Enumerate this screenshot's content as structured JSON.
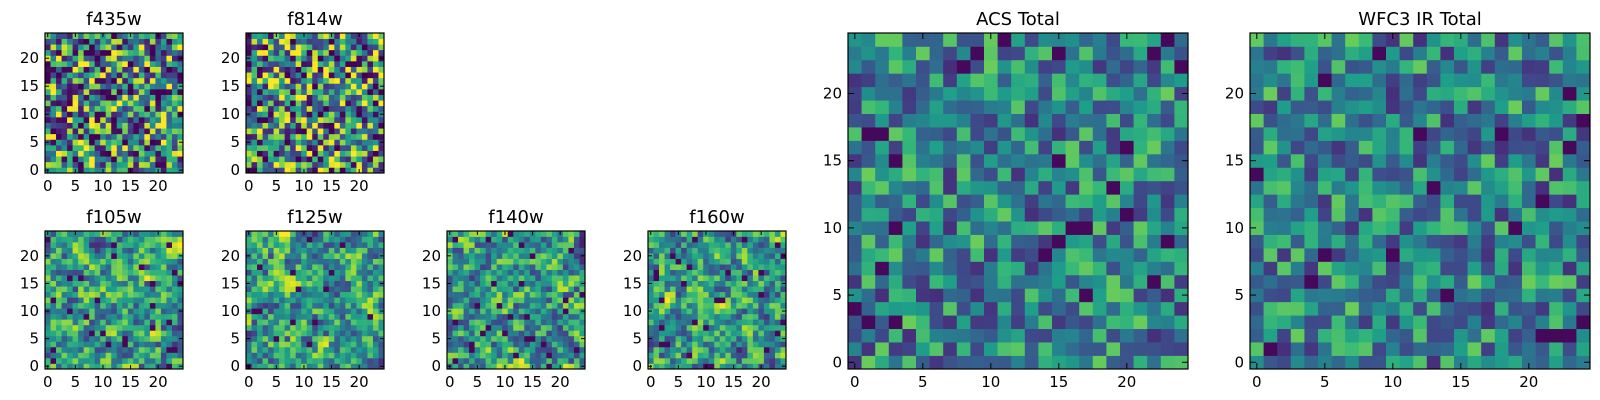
{
  "chart_data": [
    {
      "type": "heatmap",
      "title": "f435w",
      "size": 25,
      "xticks": [
        0,
        5,
        10,
        15,
        20
      ],
      "yticks": [
        0,
        5,
        10,
        15,
        20
      ],
      "xlim": [
        0,
        24
      ],
      "ylim": [
        0,
        24
      ],
      "pattern": "noise",
      "seed": 11
    },
    {
      "type": "heatmap",
      "title": "f814w",
      "size": 25,
      "xticks": [
        0,
        5,
        10,
        15,
        20
      ],
      "yticks": [
        0,
        5,
        10,
        15,
        20
      ],
      "xlim": [
        0,
        24
      ],
      "ylim": [
        0,
        24
      ],
      "pattern": "noise",
      "seed": 23
    },
    {
      "type": "heatmap",
      "title": "f105w",
      "size": 25,
      "xticks": [
        0,
        5,
        10,
        15,
        20
      ],
      "yticks": [
        0,
        5,
        10,
        15,
        20
      ],
      "xlim": [
        0,
        24
      ],
      "ylim": [
        0,
        24
      ],
      "pattern": "smooth",
      "seed": 37
    },
    {
      "type": "heatmap",
      "title": "f125w",
      "size": 25,
      "xticks": [
        0,
        5,
        10,
        15,
        20
      ],
      "yticks": [
        0,
        5,
        10,
        15,
        20
      ],
      "xlim": [
        0,
        24
      ],
      "ylim": [
        0,
        24
      ],
      "pattern": "smooth",
      "seed": 41
    },
    {
      "type": "heatmap",
      "title": "f140w",
      "size": 25,
      "xticks": [
        0,
        5,
        10,
        15,
        20
      ],
      "yticks": [
        0,
        5,
        10,
        15,
        20
      ],
      "xlim": [
        0,
        24
      ],
      "ylim": [
        0,
        24
      ],
      "pattern": "smooth",
      "seed": 53
    },
    {
      "type": "heatmap",
      "title": "f160w",
      "size": 25,
      "xticks": [
        0,
        5,
        10,
        15,
        20
      ],
      "yticks": [
        0,
        5,
        10,
        15,
        20
      ],
      "xlim": [
        0,
        24
      ],
      "ylim": [
        0,
        24
      ],
      "pattern": "smooth",
      "seed": 67
    },
    {
      "type": "heatmap",
      "title": "ACS Total",
      "size": 25,
      "xticks": [
        0,
        5,
        10,
        15,
        20
      ],
      "yticks": [
        0,
        5,
        10,
        15,
        20
      ],
      "xlim": [
        0,
        24
      ],
      "ylim": [
        0,
        24
      ],
      "pattern": "total",
      "seed": 79
    },
    {
      "type": "heatmap",
      "title": "WFC3 IR Total",
      "size": 25,
      "xticks": [
        0,
        5,
        10,
        15,
        20
      ],
      "yticks": [
        0,
        5,
        10,
        15,
        20
      ],
      "xlim": [
        0,
        24
      ],
      "ylim": [
        0,
        24
      ],
      "pattern": "total",
      "seed": 97
    }
  ]
}
